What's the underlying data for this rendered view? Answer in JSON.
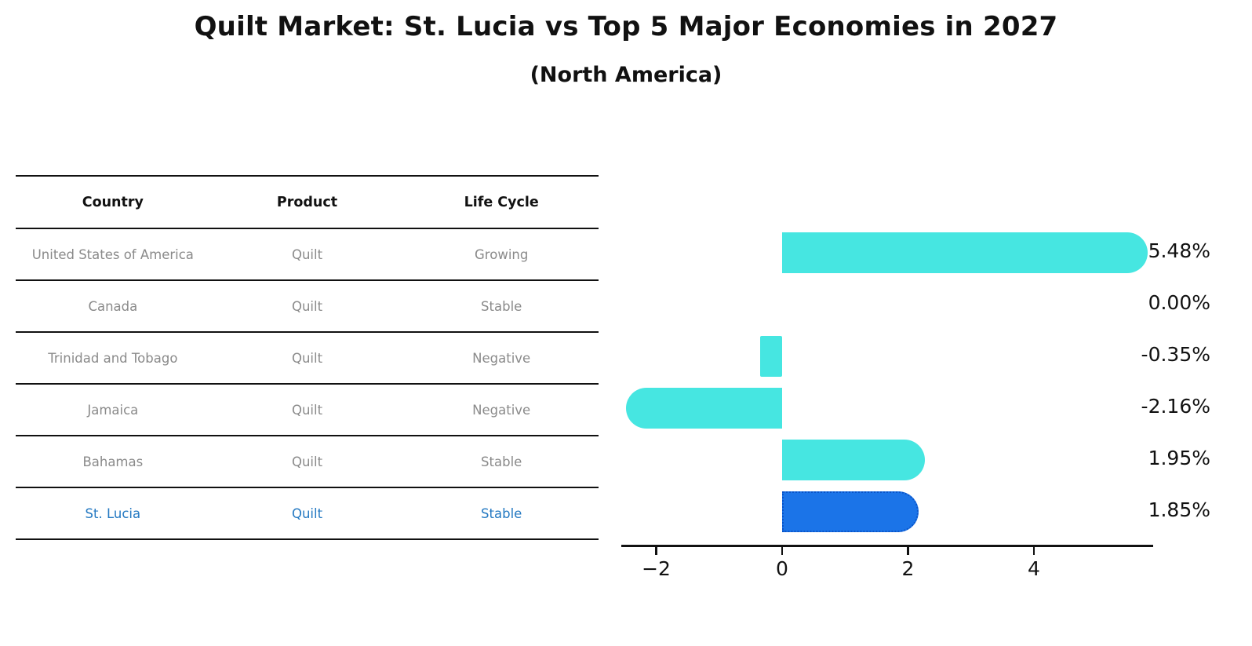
{
  "title": "Quilt Market: St. Lucia vs Top 5 Major Economies in 2027",
  "subtitle": "(North America)",
  "table": {
    "headers": [
      "Country",
      "Product",
      "Life Cycle"
    ],
    "rows": [
      {
        "country": "United States of America",
        "product": "Quilt",
        "life_cycle": "Growing",
        "highlight": false
      },
      {
        "country": "Canada",
        "product": "Quilt",
        "life_cycle": "Stable",
        "highlight": false
      },
      {
        "country": "Trinidad and Tobago",
        "product": "Quilt",
        "life_cycle": "Negative",
        "highlight": false
      },
      {
        "country": "Jamaica",
        "product": "Quilt",
        "life_cycle": "Negative",
        "highlight": false
      },
      {
        "country": "Bahamas",
        "product": "Quilt",
        "life_cycle": "Stable",
        "highlight": false
      },
      {
        "country": "St. Lucia",
        "product": "Quilt",
        "life_cycle": "Stable",
        "highlight": true
      }
    ]
  },
  "chart_data": {
    "type": "bar",
    "orientation": "horizontal",
    "title": "Quilt Market: St. Lucia vs Top 5 Major Economies in 2027 (North America)",
    "categories": [
      "United States of America",
      "Canada",
      "Trinidad and Tobago",
      "Jamaica",
      "Bahamas",
      "St. Lucia"
    ],
    "values": [
      5.48,
      0.0,
      -0.35,
      -2.16,
      1.95,
      1.85
    ],
    "value_labels": [
      "5.48%",
      "0.00%",
      "-0.35%",
      "-2.16%",
      "1.95%",
      "1.85%"
    ],
    "xticks": [
      -2,
      0,
      2,
      4
    ],
    "xtick_labels": [
      "−2",
      "0",
      "2",
      "4"
    ],
    "xlim": [
      -2.56,
      5.9
    ],
    "grid": false,
    "legend": "none",
    "bar_color": "#46E6E1",
    "highlight_color": "#1B74E8",
    "highlight_border_color": "#0a54c8",
    "highlight_index": 5
  }
}
